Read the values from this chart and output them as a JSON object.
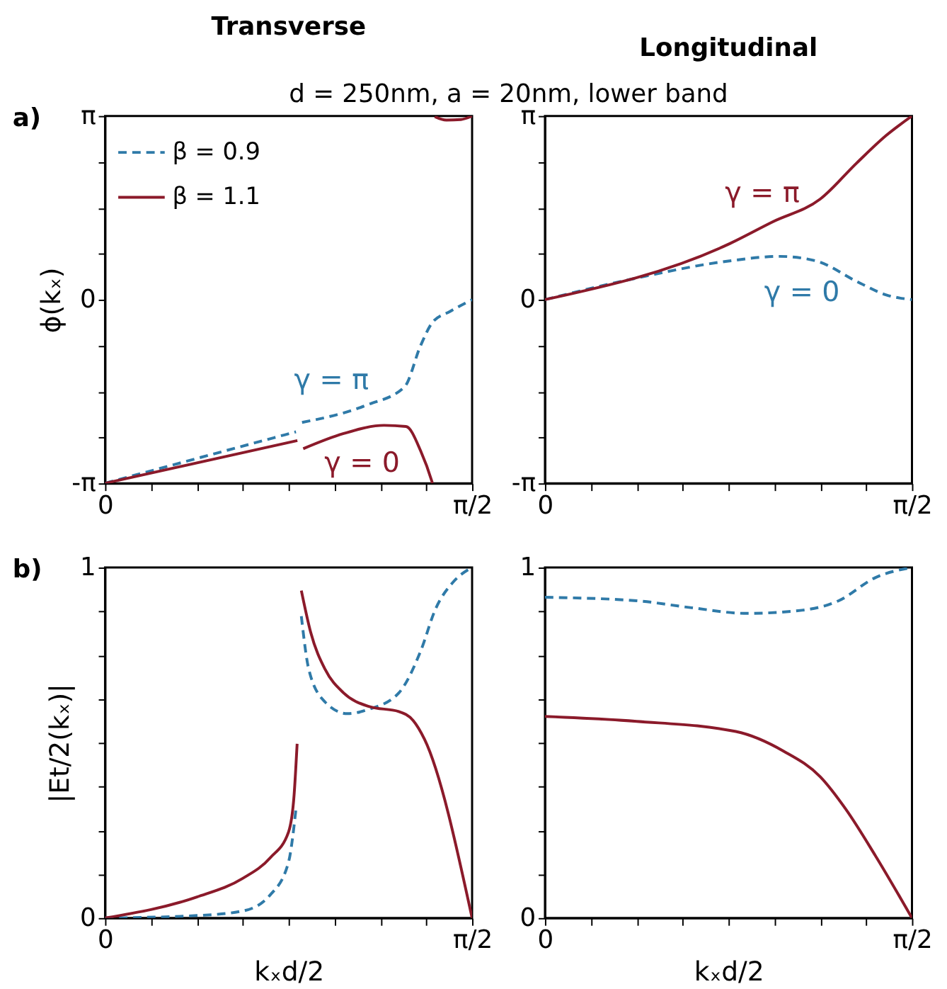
{
  "chart_data": [
    {
      "type": "line",
      "title": "Transverse",
      "subtitle": "d = 250nm, a = 20nm, lower band",
      "ylabel": "ϕ(kₓ)",
      "annotations": [
        "a)",
        {
          "text": "γ = π",
          "x": 0.969,
          "y": -1.96
        },
        {
          "text": "γ = 0",
          "x": 1.1,
          "y": -2.23
        }
      ],
      "legend": "top left",
      "marker": "none",
      "xlim": [
        0,
        1.5708
      ],
      "xticks": [
        {
          "value": 0,
          "label": "0"
        },
        {
          "value": 0.1963,
          "label": null
        },
        {
          "value": 0.3927,
          "label": null
        },
        {
          "value": 0.589,
          "label": null
        },
        {
          "value": 0.7854,
          "label": null
        },
        {
          "value": 0.9817,
          "label": null
        },
        {
          "value": 1.1781,
          "label": null
        },
        {
          "value": 1.3744,
          "label": null
        },
        {
          "value": 1.5708,
          "label": "π/2"
        }
      ],
      "ylim": [
        -3.1416,
        3.1416
      ],
      "yticks": [
        {
          "value": -3.1416,
          "label": "-π"
        },
        {
          "value": -2.3562,
          "label": null
        },
        {
          "value": -1.5708,
          "label": null
        },
        {
          "value": -0.7854,
          "label": null
        },
        {
          "value": 0,
          "label": "0"
        },
        {
          "value": 0.7854,
          "label": null
        },
        {
          "value": 1.5708,
          "label": null
        },
        {
          "value": 2.3562,
          "label": null
        },
        {
          "value": 3.1416,
          "label": "π"
        }
      ],
      "series": [
        {
          "name": "β = 0.9",
          "color": "#2f7aa8",
          "line_style": "dashed",
          "x": [
            0,
            0.408,
            0.817,
            0.83,
            0.843,
            1.122,
            1.282,
            1.351,
            1.401,
            1.477,
            1.5708
          ],
          "values": [
            -3.14,
            -2.7,
            -2.26,
            null,
            -2.1,
            -1.8,
            -1.49,
            -0.78,
            -0.39,
            -0.2,
            0
          ]
        },
        {
          "name": "β = 1.1",
          "color": "#8b1a2a",
          "line_style": "solid",
          "x": [
            0,
            0.823,
            0.835,
            0.848,
            1.021,
            1.194,
            1.288,
            1.351,
            1.398,
            1.401,
            1.405,
            1.411,
            1.461,
            1.523,
            1.5708
          ],
          "values": [
            -3.14,
            -2.41,
            null,
            -2.55,
            -2.29,
            -2.15,
            -2.17,
            -2.59,
            -3.1,
            -3.14,
            null,
            3.13,
            3.07,
            3.08,
            3.14
          ]
        }
      ]
    },
    {
      "type": "line",
      "title": "Longitudinal",
      "annotations": [
        {
          "text": "γ = π",
          "x": 0.93,
          "y": 1.24
        },
        {
          "text": "γ = 0",
          "x": 1.1,
          "y": 0.7
        }
      ],
      "marker": "none",
      "xlim": [
        0,
        1.5708
      ],
      "xticks": [
        {
          "value": 0,
          "label": "0"
        },
        {
          "value": 0.1963,
          "label": null
        },
        {
          "value": 0.3927,
          "label": null
        },
        {
          "value": 0.589,
          "label": null
        },
        {
          "value": 0.7854,
          "label": null
        },
        {
          "value": 0.9817,
          "label": null
        },
        {
          "value": 1.1781,
          "label": null
        },
        {
          "value": 1.3744,
          "label": null
        },
        {
          "value": 1.5708,
          "label": "π/2"
        }
      ],
      "ylim": [
        -3.1416,
        3.1416
      ],
      "yticks": [
        {
          "value": -3.1416,
          "label": "-π"
        },
        {
          "value": -2.3562,
          "label": null
        },
        {
          "value": -1.5708,
          "label": null
        },
        {
          "value": -0.7854,
          "label": null
        },
        {
          "value": 0,
          "label": "0"
        },
        {
          "value": 0.7854,
          "label": null
        },
        {
          "value": 1.5708,
          "label": null
        },
        {
          "value": 2.3562,
          "label": null
        },
        {
          "value": 3.1416,
          "label": "π"
        }
      ],
      "series": [
        {
          "color": "#2f7aa8",
          "line_style": "dashed",
          "x": [
            0,
            0.393,
            0.785,
            1.005,
            1.162,
            1.335,
            1.461,
            1.5708
          ],
          "values": [
            0,
            0.37,
            0.66,
            0.74,
            0.66,
            0.31,
            0.08,
            0
          ]
        },
        {
          "color": "#8b1a2a",
          "line_style": "solid",
          "x": [
            0,
            0.781,
            0.974,
            1.178,
            1.335,
            1.461,
            1.5708
          ],
          "values": [
            0,
            0.94,
            1.33,
            1.72,
            2.34,
            2.81,
            3.14
          ]
        }
      ]
    },
    {
      "type": "line",
      "xlabel": "kₓd/2",
      "ylabel": "|Et/2(kₓ)|",
      "annotations": [
        "b)"
      ],
      "marker": "none",
      "xlim": [
        0,
        1.5708
      ],
      "xticks": [
        {
          "value": 0,
          "label": "0"
        },
        {
          "value": 0.1963,
          "label": null
        },
        {
          "value": 0.3927,
          "label": null
        },
        {
          "value": 0.589,
          "label": null
        },
        {
          "value": 0.7854,
          "label": null
        },
        {
          "value": 0.9817,
          "label": null
        },
        {
          "value": 1.1781,
          "label": null
        },
        {
          "value": 1.3744,
          "label": null
        },
        {
          "value": 1.5708,
          "label": "π/2"
        }
      ],
      "ylim": [
        0,
        1
      ],
      "yticks": [
        0,
        {
          "value": 0.125,
          "label": null
        },
        {
          "value": 0.25,
          "label": null
        },
        {
          "value": 0.375,
          "label": null
        },
        {
          "value": 0.5,
          "label": null
        },
        {
          "value": 0.625,
          "label": null
        },
        {
          "value": 0.75,
          "label": null
        },
        {
          "value": 0.875,
          "label": null
        },
        1
      ],
      "series": [
        {
          "color": "#2f7aa8",
          "line_style": "dashed",
          "x": [
            0,
            0.393,
            0.589,
            0.707,
            0.785,
            0.817,
            0.83,
            0.84,
            0.872,
            0.942,
            1.037,
            1.131,
            1.257,
            1.351,
            1.414,
            1.492,
            1.5708
          ],
          "values": [
            0,
            0.007,
            0.02,
            0.066,
            0.159,
            0.311,
            null,
            0.861,
            0.709,
            0.616,
            0.583,
            0.596,
            0.642,
            0.762,
            0.881,
            0.96,
            1
          ]
        },
        {
          "color": "#8b1a2a",
          "line_style": "solid",
          "x": [
            0,
            0.393,
            0.589,
            0.707,
            0.785,
            0.809,
            0.822,
            0.831,
            0.84,
            0.88,
            0.942,
            1.021,
            1.131,
            1.257,
            1.319,
            1.367,
            1.5708
          ],
          "values": [
            0,
            0.06,
            0.113,
            0.172,
            0.245,
            0.351,
            0.497,
            null,
            0.934,
            0.815,
            0.709,
            0.642,
            0.603,
            0.589,
            0.563,
            0.51,
            0
          ]
        }
      ]
    },
    {
      "type": "line",
      "xlabel": "kₓd/2",
      "marker": "none",
      "xlim": [
        0,
        1.5708
      ],
      "xticks": [
        {
          "value": 0,
          "label": "0"
        },
        {
          "value": 0.1963,
          "label": null
        },
        {
          "value": 0.3927,
          "label": null
        },
        {
          "value": 0.589,
          "label": null
        },
        {
          "value": 0.7854,
          "label": null
        },
        {
          "value": 0.9817,
          "label": null
        },
        {
          "value": 1.1781,
          "label": null
        },
        {
          "value": 1.3744,
          "label": null
        },
        {
          "value": 1.5708,
          "label": "π/2"
        }
      ],
      "ylim": [
        0,
        1
      ],
      "yticks": [
        0,
        {
          "value": 0.125,
          "label": null
        },
        {
          "value": 0.25,
          "label": null
        },
        {
          "value": 0.375,
          "label": null
        },
        {
          "value": 0.5,
          "label": null
        },
        {
          "value": 0.625,
          "label": null
        },
        {
          "value": 0.75,
          "label": null
        },
        {
          "value": 0.875,
          "label": null
        },
        1
      ],
      "series": [
        {
          "color": "#2f7aa8",
          "line_style": "dashed",
          "x": [
            0,
            0.393,
            0.628,
            0.864,
            1.1,
            1.257,
            1.414,
            1.5708
          ],
          "values": [
            0.915,
            0.905,
            0.885,
            0.869,
            0.878,
            0.905,
            0.971,
            1
          ]
        },
        {
          "color": "#8b1a2a",
          "line_style": "solid",
          "x": [
            0,
            0.393,
            0.817,
            1.021,
            1.178,
            1.288,
            1.414,
            1.5708
          ],
          "values": [
            0.575,
            0.561,
            0.532,
            0.476,
            0.403,
            0.31,
            0.178,
            0
          ]
        }
      ]
    }
  ]
}
